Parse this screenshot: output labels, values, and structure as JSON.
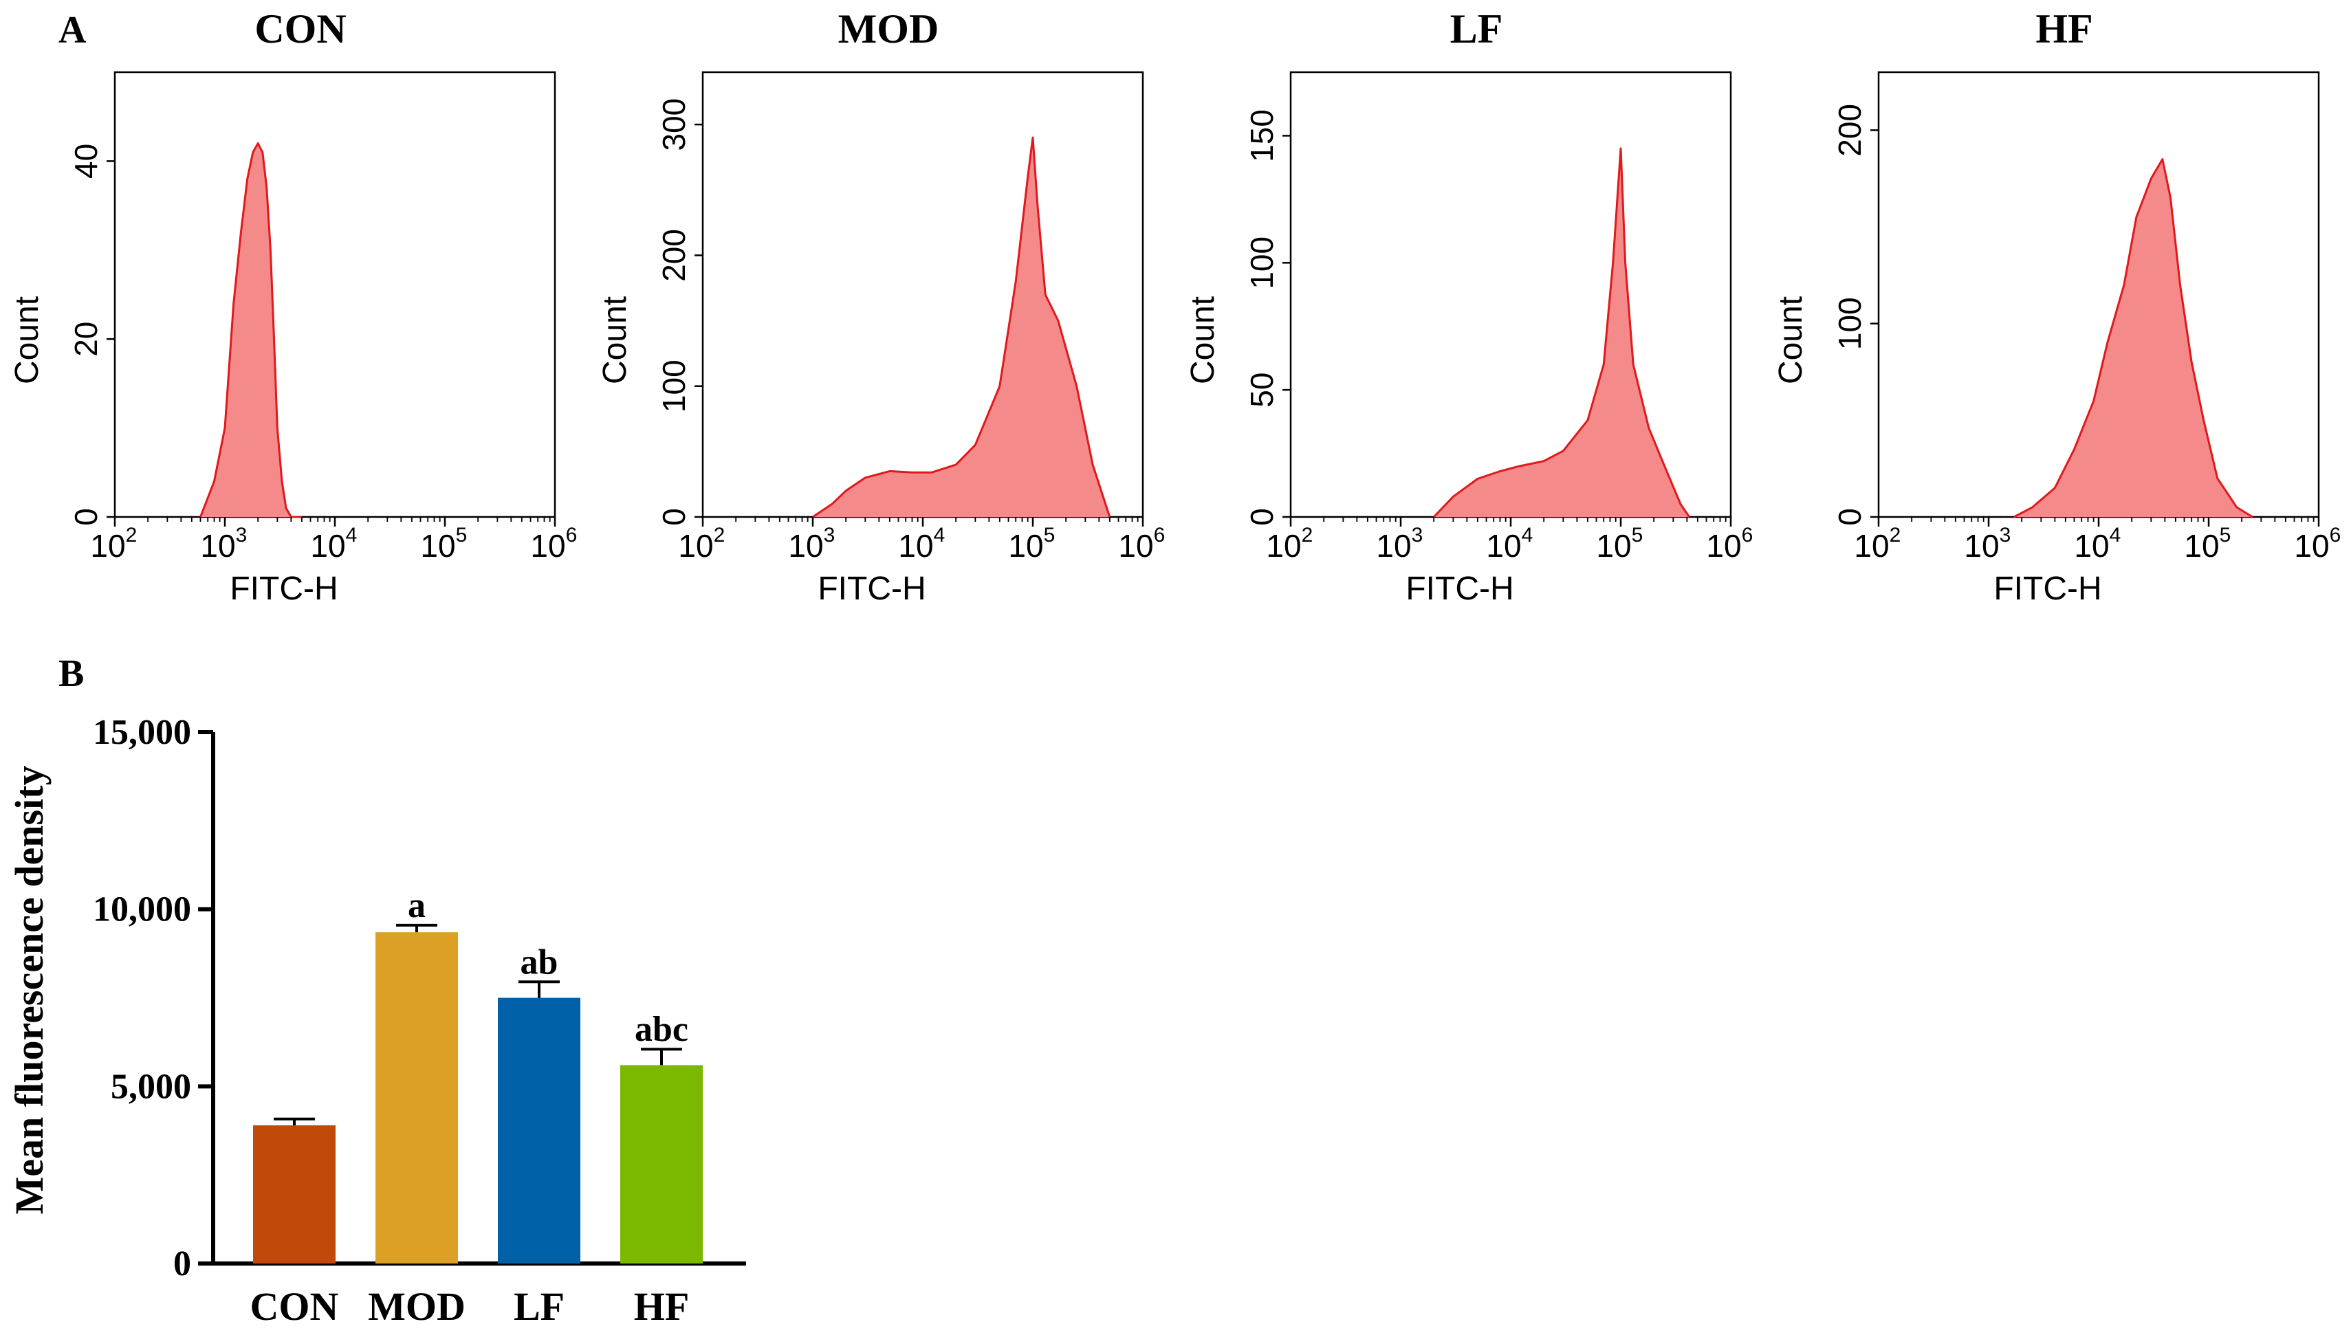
{
  "figure": {
    "panel_a_label": "A",
    "panel_b_label": "B"
  },
  "chart_data": [
    {
      "type": "area",
      "title": "CON",
      "xlabel": "FITC-H",
      "ylabel": "Count",
      "xscale": "log",
      "xlim": [
        100,
        1000000
      ],
      "ylim": [
        0,
        50
      ],
      "yticks": [
        0,
        20,
        40
      ],
      "xtick_exponents": [
        "2",
        "3",
        "4",
        "5",
        "6"
      ],
      "fill_color": "#f58a8a",
      "line_color": "#e0191c",
      "x": [
        600,
        800,
        1000,
        1200,
        1400,
        1600,
        1800,
        2000,
        2200,
        2400,
        2600,
        2800,
        3000,
        3300,
        3600,
        4000,
        5000
      ],
      "values": [
        0,
        4,
        10,
        24,
        32,
        38,
        41,
        42,
        41,
        37,
        30,
        20,
        10,
        4,
        1,
        0,
        0
      ]
    },
    {
      "type": "area",
      "title": "MOD",
      "xlabel": "FITC-H",
      "ylabel": "Count",
      "xscale": "log",
      "xlim": [
        100,
        1000000
      ],
      "ylim": [
        0,
        340
      ],
      "yticks": [
        0,
        100,
        200,
        300
      ],
      "xtick_exponents": [
        "2",
        "3",
        "4",
        "5",
        "6"
      ],
      "fill_color": "#f58a8a",
      "line_color": "#e0191c",
      "x": [
        1000,
        1500,
        2000,
        3000,
        5000,
        8000,
        12000,
        20000,
        30000,
        50000,
        70000,
        90000,
        100000,
        110000,
        130000,
        170000,
        250000,
        350000,
        500000
      ],
      "values": [
        0,
        10,
        20,
        30,
        35,
        34,
        34,
        40,
        55,
        100,
        180,
        260,
        290,
        240,
        170,
        150,
        100,
        40,
        0
      ]
    },
    {
      "type": "area",
      "title": "LF",
      "xlabel": "FITC-H",
      "ylabel": "Count",
      "xscale": "log",
      "xlim": [
        100,
        1000000
      ],
      "ylim": [
        0,
        175
      ],
      "yticks": [
        0,
        50,
        100,
        150
      ],
      "xtick_exponents": [
        "2",
        "3",
        "4",
        "5",
        "6"
      ],
      "fill_color": "#f58a8a",
      "line_color": "#e0191c",
      "x": [
        2000,
        3000,
        5000,
        8000,
        12000,
        20000,
        30000,
        50000,
        70000,
        85000,
        100000,
        110000,
        130000,
        180000,
        250000,
        350000,
        420000
      ],
      "values": [
        0,
        8,
        15,
        18,
        20,
        22,
        26,
        38,
        60,
        100,
        145,
        100,
        60,
        35,
        20,
        5,
        0
      ]
    },
    {
      "type": "area",
      "title": "HF",
      "xlabel": "FITC-H",
      "ylabel": "Count",
      "xscale": "log",
      "xlim": [
        100,
        1000000
      ],
      "ylim": [
        0,
        230
      ],
      "yticks": [
        0,
        100,
        200
      ],
      "xtick_exponents": [
        "2",
        "3",
        "4",
        "5",
        "6"
      ],
      "fill_color": "#f58a8a",
      "line_color": "#e0191c",
      "x": [
        1700,
        2500,
        4000,
        6000,
        9000,
        12000,
        17000,
        22000,
        30000,
        38000,
        45000,
        55000,
        70000,
        90000,
        120000,
        180000,
        250000
      ],
      "values": [
        0,
        5,
        15,
        35,
        60,
        90,
        120,
        155,
        175,
        185,
        165,
        120,
        80,
        50,
        20,
        5,
        0
      ]
    },
    {
      "type": "bar",
      "title": "",
      "xlabel": "",
      "ylabel": "Mean fluorescence density",
      "ylim": [
        0,
        15000
      ],
      "yticks": [
        0,
        5000,
        10000,
        15000
      ],
      "ytick_labels": [
        "0",
        "5,000",
        "10,000",
        "15,000"
      ],
      "categories": [
        "CON",
        "MOD",
        "LF",
        "HF"
      ],
      "values": [
        3900,
        9350,
        7500,
        5600
      ],
      "errors": [
        180,
        200,
        450,
        450
      ],
      "annotations": [
        "",
        "a",
        "ab",
        "abc"
      ],
      "colors": [
        "#c04a0a",
        "#dca124",
        "#0061a8",
        "#7bb800"
      ]
    }
  ]
}
